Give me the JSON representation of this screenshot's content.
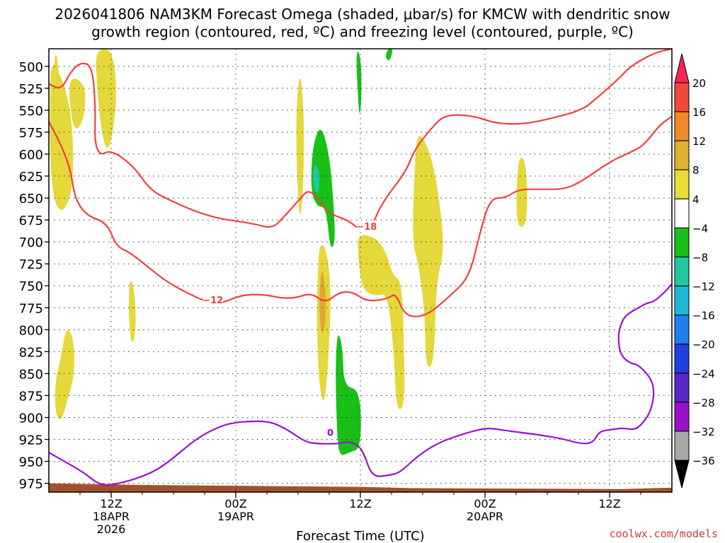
{
  "chart_data": {
    "type": "time-height-contour",
    "title_line1": "2026041806 NAM3KM Forecast Omega (shaded, μbar/s) for KMCW with dendritic snow",
    "title_line2": "growth region (contoured, red, ºC) and freezing level (contoured, purple, ºC)",
    "xlabel": "Forecast Time (UTC)",
    "watermark": "coolwx.com/models",
    "xlim_hours": [
      0,
      60
    ],
    "ylim_hpa": [
      985,
      480
    ],
    "y_ticks": [
      "500",
      "525",
      "550",
      "575",
      "600",
      "625",
      "650",
      "675",
      "700",
      "725",
      "750",
      "775",
      "800",
      "825",
      "850",
      "875",
      "900",
      "925",
      "950",
      "975"
    ],
    "x_ticks": [
      {
        "hour": 6,
        "lines": [
          "12Z",
          "18APR",
          "2026"
        ]
      },
      {
        "hour": 18,
        "lines": [
          "00Z",
          "19APR"
        ]
      },
      {
        "hour": 30,
        "lines": [
          "12Z"
        ]
      },
      {
        "hour": 42,
        "lines": [
          "00Z",
          "20APR"
        ]
      },
      {
        "hour": 54,
        "lines": [
          "12Z"
        ]
      }
    ],
    "colorbar": {
      "labels": [
        "20",
        "16",
        "12",
        "8",
        "4",
        "−4",
        "−8",
        "−12",
        "−16",
        "−20",
        "−24",
        "−28",
        "−32",
        "−36"
      ],
      "colors": [
        "#ff2255",
        "#f04a3a",
        "#ee8a28",
        "#e0b030",
        "#e8dc38",
        "#ffffff",
        "#18c018",
        "#20c8a0",
        "#20b8d8",
        "#2080f0",
        "#2040e0",
        "#5828c8",
        "#9810c8",
        "#a8a8a8",
        "#000000"
      ]
    },
    "omega_regions": [
      {
        "fill": "#e4d83a",
        "poly": [
          [
            0.2,
            490
          ],
          [
            1.5,
            520
          ],
          [
            2.2,
            560
          ],
          [
            2.4,
            610
          ],
          [
            2.1,
            650
          ],
          [
            1.2,
            668
          ],
          [
            0.4,
            650
          ],
          [
            0.1,
            600
          ],
          [
            0.1,
            540
          ]
        ]
      },
      {
        "fill": "#e4d83a",
        "poly": [
          [
            0.7,
            480
          ],
          [
            1.0,
            510
          ],
          [
            1.1,
            550
          ],
          [
            0.7,
            570
          ],
          [
            0.4,
            540
          ],
          [
            0.4,
            505
          ]
        ]
      },
      {
        "fill": "#e4d83a",
        "poly": [
          [
            1.9,
            510
          ],
          [
            3.6,
            520
          ],
          [
            3.4,
            560
          ],
          [
            2.6,
            575
          ],
          [
            2.1,
            555
          ]
        ]
      },
      {
        "fill": "#e4d83a",
        "poly": [
          [
            4.5,
            480
          ],
          [
            6.2,
            480
          ],
          [
            6.6,
            540
          ],
          [
            5.8,
            600
          ],
          [
            5.1,
            580
          ],
          [
            4.6,
            520
          ]
        ]
      },
      {
        "fill": "#e4d83a",
        "poly": [
          [
            1.7,
            795
          ],
          [
            2.4,
            810
          ],
          [
            2.5,
            850
          ],
          [
            1.8,
            880
          ],
          [
            1.2,
            905
          ],
          [
            0.6,
            895
          ],
          [
            0.6,
            860
          ],
          [
            1.1,
            835
          ]
        ]
      },
      {
        "fill": "#e4d83a",
        "poly": [
          [
            7.9,
            740
          ],
          [
            8.3,
            760
          ],
          [
            8.4,
            800
          ],
          [
            8.0,
            820
          ],
          [
            7.7,
            790
          ],
          [
            7.7,
            755
          ]
        ]
      },
      {
        "fill": "#e4d83a",
        "poly": [
          [
            24.2,
            500
          ],
          [
            24.6,
            560
          ],
          [
            24.5,
            640
          ],
          [
            24.2,
            680
          ],
          [
            23.9,
            630
          ],
          [
            23.8,
            550
          ]
        ]
      },
      {
        "fill": "#e4d83a",
        "poly": [
          [
            26.1,
            700
          ],
          [
            26.8,
            710
          ],
          [
            27.2,
            760
          ],
          [
            26.9,
            840
          ],
          [
            26.5,
            890
          ],
          [
            26.0,
            860
          ],
          [
            25.8,
            790
          ],
          [
            25.9,
            730
          ]
        ]
      },
      {
        "fill": "#e4d83a",
        "poly": [
          [
            29.7,
            690
          ],
          [
            31.5,
            695
          ],
          [
            32.5,
            712
          ],
          [
            33.1,
            738
          ],
          [
            34.0,
            745
          ],
          [
            34.2,
            820
          ],
          [
            34.3,
            885
          ],
          [
            33.5,
            895
          ],
          [
            33.2,
            820
          ],
          [
            32.6,
            758
          ],
          [
            31.5,
            762
          ],
          [
            30.2,
            755
          ],
          [
            29.8,
            720
          ]
        ]
      },
      {
        "fill": "#e4d83a",
        "poly": [
          [
            35.5,
            570
          ],
          [
            36.8,
            600
          ],
          [
            37.6,
            650
          ],
          [
            38.1,
            710
          ],
          [
            37.3,
            745
          ],
          [
            37.1,
            840
          ],
          [
            36.3,
            845
          ],
          [
            36.2,
            780
          ],
          [
            35.6,
            725
          ],
          [
            35.0,
            700
          ],
          [
            35.2,
            620
          ]
        ]
      },
      {
        "fill": "#e4d83a",
        "poly": [
          [
            45.3,
            600
          ],
          [
            46.0,
            610
          ],
          [
            46.1,
            680
          ],
          [
            45.1,
            685
          ],
          [
            45.0,
            640
          ]
        ]
      },
      {
        "fill": "#e0a832",
        "poly": [
          [
            26.3,
            725
          ],
          [
            26.7,
            760
          ],
          [
            26.6,
            800
          ],
          [
            26.2,
            805
          ],
          [
            26.0,
            765
          ]
        ]
      },
      {
        "fill": "#18c018",
        "poly": [
          [
            26.2,
            565
          ],
          [
            27.0,
            600
          ],
          [
            27.4,
            650
          ],
          [
            27.6,
            700
          ],
          [
            27.1,
            710
          ],
          [
            26.7,
            660
          ],
          [
            25.8,
            660
          ],
          [
            25.2,
            640
          ],
          [
            25.4,
            590
          ]
        ]
      },
      {
        "fill": "#20c8a0",
        "poly": [
          [
            25.6,
            610
          ],
          [
            26.1,
            620
          ],
          [
            26.0,
            645
          ],
          [
            25.6,
            642
          ],
          [
            25.4,
            625
          ]
        ]
      },
      {
        "fill": "#18c018",
        "poly": [
          [
            29.8,
            480
          ],
          [
            30.1,
            500
          ],
          [
            30.1,
            540
          ],
          [
            29.9,
            560
          ],
          [
            29.7,
            520
          ],
          [
            29.6,
            490
          ]
        ]
      },
      {
        "fill": "#18c018",
        "poly": [
          [
            32.6,
            480
          ],
          [
            33.2,
            480
          ],
          [
            32.8,
            495
          ],
          [
            32.4,
            490
          ]
        ]
      },
      {
        "fill": "#18c018",
        "poly": [
          [
            27.8,
            800
          ],
          [
            28.3,
            820
          ],
          [
            28.4,
            865
          ],
          [
            30.0,
            868
          ],
          [
            30.1,
            935
          ],
          [
            28.9,
            940
          ],
          [
            27.9,
            945
          ],
          [
            27.7,
            900
          ],
          [
            27.6,
            840
          ]
        ]
      }
    ],
    "contours": [
      {
        "color": "#f04040",
        "label": "−18",
        "label_at": [
          30.6,
          682
        ],
        "pts": [
          [
            0.0,
            520
          ],
          [
            1.2,
            527
          ],
          [
            2.1,
            506
          ],
          [
            3.1,
            495
          ],
          [
            4.2,
            500
          ],
          [
            4.5,
            550
          ],
          [
            4.4,
            585
          ],
          [
            4.9,
            602
          ],
          [
            6.0,
            595
          ],
          [
            8.2,
            614
          ],
          [
            9.7,
            640
          ],
          [
            11.5,
            652
          ],
          [
            15.5,
            672
          ],
          [
            19.7,
            679
          ],
          [
            21.5,
            685
          ],
          [
            22.6,
            672
          ],
          [
            24.1,
            652
          ],
          [
            25.0,
            640
          ],
          [
            26.0,
            652
          ],
          [
            27.0,
            668
          ],
          [
            28.8,
            675
          ],
          [
            30.0,
            687
          ],
          [
            31.0,
            685
          ],
          [
            32.1,
            655
          ],
          [
            34.4,
            620
          ],
          [
            35.2,
            595
          ],
          [
            37.0,
            568
          ],
          [
            38.2,
            555
          ],
          [
            40.8,
            556
          ],
          [
            43.0,
            565
          ],
          [
            45.6,
            566
          ],
          [
            48.2,
            560
          ],
          [
            51.3,
            550
          ],
          [
            52.6,
            538
          ],
          [
            54.8,
            515
          ],
          [
            56.0,
            500
          ],
          [
            58.2,
            485
          ],
          [
            60.0,
            480
          ]
        ]
      },
      {
        "color": "#f04040",
        "label": "−12",
        "label_at": [
          15.8,
          766
        ],
        "pts": [
          [
            0.0,
            563
          ],
          [
            1.2,
            590
          ],
          [
            2.1,
            618
          ],
          [
            2.5,
            650
          ],
          [
            3.6,
            670
          ],
          [
            5.6,
            678
          ],
          [
            6.5,
            705
          ],
          [
            7.8,
            712
          ],
          [
            9.5,
            728
          ],
          [
            11.5,
            747
          ],
          [
            14.5,
            765
          ],
          [
            16.2,
            772
          ],
          [
            18.6,
            760
          ],
          [
            20.8,
            760
          ],
          [
            22.3,
            764
          ],
          [
            23.7,
            764
          ],
          [
            25.3,
            758
          ],
          [
            26.6,
            770
          ],
          [
            28.0,
            757
          ],
          [
            29.3,
            757
          ],
          [
            30.6,
            768
          ],
          [
            32.6,
            765
          ],
          [
            33.4,
            758
          ],
          [
            34.3,
            785
          ],
          [
            36.3,
            785
          ],
          [
            38.6,
            762
          ],
          [
            40.5,
            740
          ],
          [
            41.5,
            690
          ],
          [
            42.5,
            650
          ],
          [
            44.0,
            650
          ],
          [
            45.2,
            640
          ],
          [
            47.5,
            640
          ],
          [
            49.6,
            640
          ],
          [
            51.2,
            632
          ],
          [
            54.1,
            608
          ],
          [
            56.0,
            598
          ],
          [
            57.3,
            590
          ],
          [
            58.8,
            567
          ],
          [
            60.0,
            557
          ]
        ]
      },
      {
        "color": "#9a10d0",
        "label": "0",
        "label_at": [
          27.1,
          917
        ],
        "pts": [
          [
            0.0,
            940
          ],
          [
            1.5,
            950
          ],
          [
            3.4,
            963
          ],
          [
            5.0,
            978
          ],
          [
            6.9,
            975
          ],
          [
            9.6,
            965
          ],
          [
            11.4,
            952
          ],
          [
            13.6,
            930
          ],
          [
            15.2,
            917
          ],
          [
            17.4,
            906
          ],
          [
            19.9,
            904
          ],
          [
            21.4,
            905
          ],
          [
            23.0,
            914
          ],
          [
            24.7,
            928
          ],
          [
            26.0,
            930
          ],
          [
            27.8,
            930
          ],
          [
            29.0,
            927
          ],
          [
            30.2,
            935
          ],
          [
            31.1,
            968
          ],
          [
            32.7,
            966
          ],
          [
            33.8,
            963
          ],
          [
            35.4,
            945
          ],
          [
            37.3,
            930
          ],
          [
            39.3,
            921
          ],
          [
            41.3,
            914
          ],
          [
            42.5,
            912
          ],
          [
            44.0,
            915
          ],
          [
            46.8,
            919
          ],
          [
            49.4,
            924
          ],
          [
            51.2,
            930
          ],
          [
            52.4,
            929
          ],
          [
            53.0,
            916
          ],
          [
            54.0,
            914
          ],
          [
            55.2,
            912
          ],
          [
            56.4,
            914
          ],
          [
            57.0,
            909
          ],
          [
            57.9,
            895
          ],
          [
            58.3,
            875
          ],
          [
            58.1,
            857
          ],
          [
            56.8,
            840
          ],
          [
            55.9,
            838
          ],
          [
            55.0,
            828
          ],
          [
            54.8,
            805
          ],
          [
            55.3,
            787
          ],
          [
            56.0,
            780
          ],
          [
            56.8,
            775
          ],
          [
            57.5,
            770
          ],
          [
            58.3,
            768
          ],
          [
            59.5,
            755
          ],
          [
            60.0,
            748
          ]
        ]
      }
    ],
    "contour_labels": [
      "−18",
      "−12",
      "0"
    ],
    "terrain_color": "#a0522d"
  }
}
